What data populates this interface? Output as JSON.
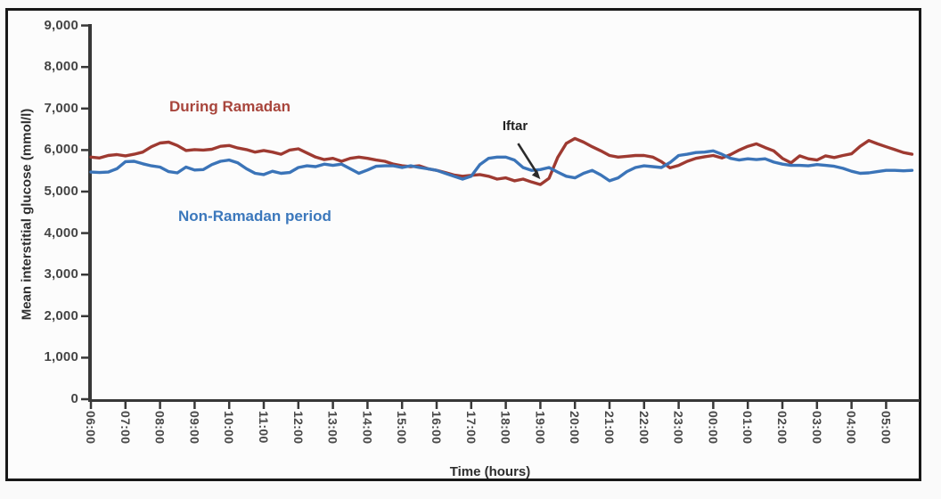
{
  "figure": {
    "y_axis": {
      "title": "Mean interstitial glucose (mmol/l)",
      "tick_labels": [
        "0",
        "1,000",
        "2,000",
        "3,000",
        "4,000",
        "5,000",
        "6,000",
        "7,000",
        "8,000",
        "9,000"
      ]
    },
    "x_axis": {
      "title": "Time (hours)",
      "tick_labels": [
        "06:00",
        "07:00",
        "08:00",
        "09:00",
        "10:00",
        "11:00",
        "12:00",
        "13:00",
        "14:00",
        "15:00",
        "16:00",
        "17:00",
        "18:00",
        "19:00",
        "20:00",
        "21:00",
        "22:00",
        "23:00",
        "00:00",
        "01:00",
        "02:00",
        "03:00",
        "04:00",
        "05:00"
      ]
    },
    "series_labels": {
      "ramadan": "During Ramadan",
      "non_ramadan": "Non-Ramadan period"
    },
    "annotation_label": "Iftar",
    "colors": {
      "ramadan_line": "#9e3a31",
      "non_ramadan_line": "#3b74b8",
      "ramadan_text": "#a8453c",
      "non_ramadan_text": "#3c78bc",
      "axis": "#383838",
      "arrow": "#2b2b2b",
      "frame": "#181818"
    }
  },
  "chart_data": {
    "type": "line",
    "title": "",
    "xlabel": "Time (hours)",
    "ylabel": "Mean interstitial glucose (mmol/l)",
    "ylim": [
      0,
      9000
    ],
    "y_tick_step": 1000,
    "x_start": "06:00",
    "x_interval_minutes": 15,
    "x_tick_labels": [
      "06:00",
      "07:00",
      "08:00",
      "09:00",
      "10:00",
      "11:00",
      "12:00",
      "13:00",
      "14:00",
      "15:00",
      "16:00",
      "17:00",
      "18:00",
      "19:00",
      "20:00",
      "21:00",
      "22:00",
      "23:00",
      "00:00",
      "01:00",
      "02:00",
      "03:00",
      "04:00",
      "05:00"
    ],
    "legend_position": "inline-labels",
    "grid": false,
    "series": [
      {
        "name": "During Ramadan",
        "color": "#9e3a31",
        "values": [
          5830,
          5810,
          5870,
          5890,
          5860,
          5900,
          5950,
          6080,
          6170,
          6190,
          6110,
          5990,
          6010,
          6000,
          6020,
          6090,
          6110,
          6050,
          6010,
          5950,
          5990,
          5950,
          5900,
          6000,
          6030,
          5930,
          5830,
          5770,
          5800,
          5730,
          5800,
          5830,
          5800,
          5760,
          5730,
          5660,
          5620,
          5600,
          5620,
          5550,
          5510,
          5460,
          5400,
          5370,
          5390,
          5410,
          5370,
          5300,
          5330,
          5260,
          5300,
          5230,
          5170,
          5320,
          5820,
          6160,
          6280,
          6190,
          6080,
          5980,
          5870,
          5830,
          5850,
          5870,
          5870,
          5830,
          5720,
          5570,
          5630,
          5730,
          5800,
          5840,
          5870,
          5810,
          5890,
          6000,
          6090,
          6150,
          6060,
          5980,
          5800,
          5690,
          5860,
          5790,
          5760,
          5860,
          5820,
          5870,
          5910,
          6090,
          6230,
          6150,
          6080,
          6010,
          5940,
          5900
        ]
      },
      {
        "name": "Non-Ramadan period",
        "color": "#3b74b8",
        "values": [
          5470,
          5460,
          5470,
          5550,
          5720,
          5730,
          5670,
          5620,
          5590,
          5480,
          5450,
          5590,
          5520,
          5530,
          5650,
          5730,
          5760,
          5690,
          5550,
          5440,
          5410,
          5490,
          5440,
          5460,
          5580,
          5620,
          5600,
          5660,
          5630,
          5660,
          5550,
          5440,
          5520,
          5610,
          5620,
          5620,
          5580,
          5620,
          5580,
          5550,
          5510,
          5440,
          5370,
          5300,
          5370,
          5650,
          5800,
          5830,
          5830,
          5760,
          5580,
          5510,
          5530,
          5580,
          5470,
          5370,
          5330,
          5440,
          5510,
          5400,
          5260,
          5330,
          5480,
          5580,
          5620,
          5600,
          5580,
          5700,
          5870,
          5900,
          5940,
          5950,
          5980,
          5900,
          5800,
          5760,
          5790,
          5770,
          5790,
          5710,
          5660,
          5630,
          5630,
          5620,
          5650,
          5630,
          5610,
          5560,
          5490,
          5440,
          5450,
          5480,
          5510,
          5510,
          5500,
          5510
        ]
      }
    ],
    "annotations": [
      {
        "label": "Iftar",
        "x": "19:00",
        "y": 5170,
        "series": "During Ramadan"
      }
    ]
  }
}
